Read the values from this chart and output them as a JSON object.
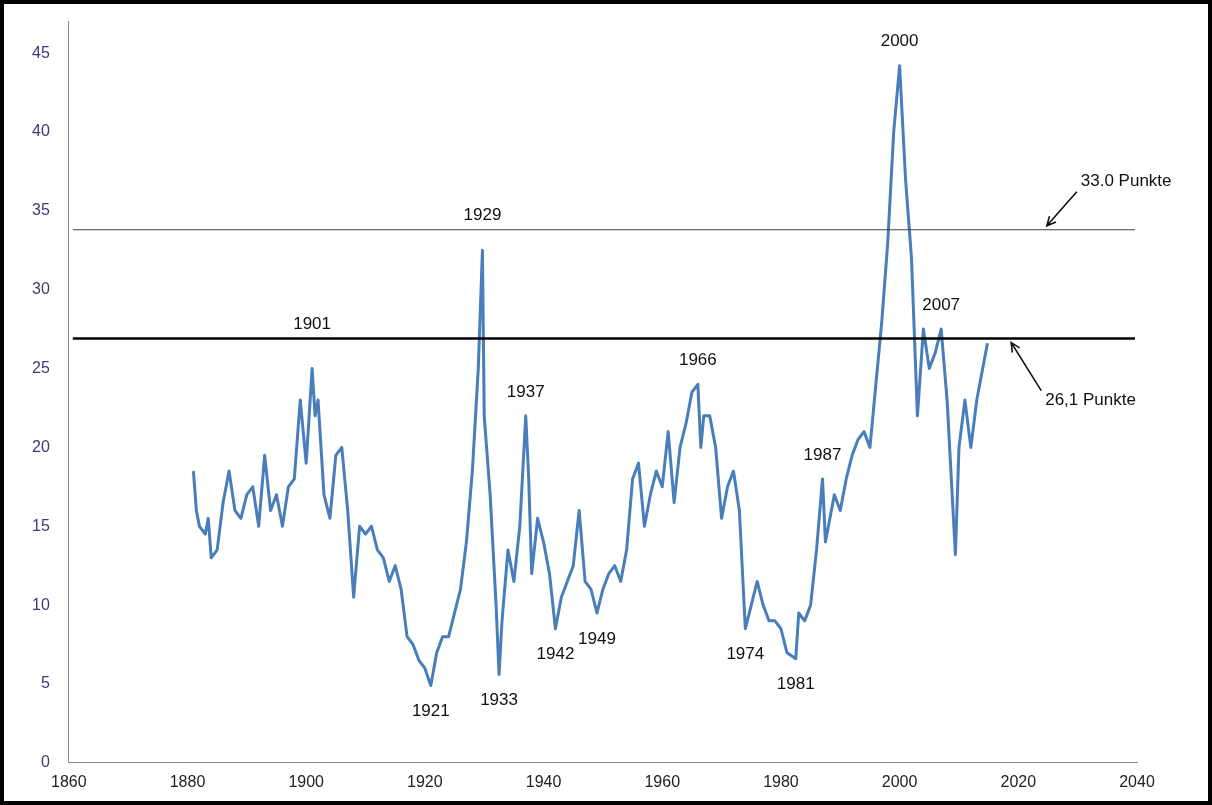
{
  "chart_data": {
    "type": "line",
    "x": [
      1881,
      1881.5,
      1882,
      1883,
      1883.5,
      1884,
      1885,
      1886,
      1887,
      1888,
      1889,
      1890,
      1891,
      1892,
      1893,
      1894,
      1895,
      1896,
      1897,
      1898,
      1899,
      1900,
      1901,
      1901.5,
      1902,
      1903,
      1904,
      1905,
      1906,
      1907,
      1908,
      1909,
      1910,
      1911,
      1912,
      1913,
      1914,
      1915,
      1916,
      1917,
      1918,
      1919,
      1920,
      1921,
      1922,
      1923,
      1924,
      1925,
      1926,
      1927,
      1928,
      1929,
      1929.7,
      1930,
      1931,
      1932,
      1932.5,
      1933,
      1934,
      1935,
      1936,
      1937,
      1937.5,
      1938,
      1939,
      1940,
      1941,
      1942,
      1943,
      1944,
      1945,
      1946,
      1947,
      1948,
      1949,
      1950,
      1951,
      1952,
      1953,
      1954,
      1955,
      1956,
      1957,
      1958,
      1959,
      1960,
      1961,
      1962,
      1963,
      1964,
      1965,
      1966,
      1966.5,
      1967,
      1968,
      1969,
      1970,
      1971,
      1972,
      1973,
      1974,
      1975,
      1976,
      1977,
      1978,
      1979,
      1980,
      1981,
      1982.5,
      1983,
      1984,
      1985,
      1986,
      1987,
      1987.5,
      1988,
      1989,
      1990,
      1991,
      1992,
      1993,
      1994,
      1995,
      1996,
      1997,
      1998,
      1999,
      2000,
      2001,
      2002,
      2003,
      2004,
      2005,
      2006,
      2007,
      2008,
      2009.4,
      2010,
      2011,
      2012,
      2013,
      2014,
      2014.8
    ],
    "series": [
      {
        "color": "#4a7ebb",
        "values": [
          18.5,
          16,
          15,
          14.5,
          15.5,
          13,
          13.5,
          16.5,
          18.5,
          16,
          15.5,
          17,
          17.5,
          15,
          19.5,
          16,
          17,
          15,
          17.5,
          18,
          23,
          19,
          25,
          22,
          23,
          17,
          15.5,
          19.5,
          20,
          16,
          10.5,
          15,
          14.5,
          15,
          13.5,
          13,
          11.5,
          12.5,
          11,
          8,
          7.5,
          6.5,
          6,
          4.9,
          7,
          8,
          8,
          9.5,
          11,
          14,
          18.5,
          25,
          32.5,
          22,
          17,
          10,
          5.6,
          9,
          13.5,
          11.5,
          15,
          22,
          18,
          12,
          15.5,
          14,
          12,
          8.5,
          10.5,
          11.5,
          12.5,
          16,
          11.5,
          11,
          9.5,
          11,
          12,
          12.5,
          11.5,
          13.5,
          18,
          19,
          15,
          17,
          18.5,
          17.5,
          21,
          16.5,
          20,
          21.5,
          23.5,
          24,
          20,
          22,
          22,
          20,
          15.5,
          17.5,
          18.5,
          16,
          8.5,
          10,
          11.5,
          10,
          9,
          9,
          8.5,
          7,
          6.6,
          9.5,
          9,
          10,
          13.5,
          18,
          14,
          15,
          17,
          16,
          18,
          19.5,
          20.5,
          21,
          20,
          24,
          28,
          33,
          40,
          44.2,
          37,
          32,
          22,
          27.5,
          25,
          26,
          27.5,
          23,
          13.2,
          20,
          23,
          20,
          23,
          25,
          26.6
        ]
      }
    ],
    "xlim": [
      1860,
      2040
    ],
    "xticks": [
      1860,
      1880,
      1900,
      1920,
      1940,
      1960,
      1980,
      2000,
      2020,
      2040
    ],
    "ylim": [
      0,
      47
    ],
    "yticks": [
      0,
      5,
      10,
      15,
      20,
      25,
      30,
      35,
      40,
      45
    ],
    "ref_lines": [
      {
        "axis": "y",
        "value": 33.8,
        "color": "#404040",
        "label": "33.0 Punkte"
      },
      {
        "axis": "y",
        "value": 26.9,
        "color": "#000000",
        "label": "26,1 Punkte"
      }
    ],
    "annotations": [
      {
        "text": "1901",
        "x": 1901,
        "y": 25
      },
      {
        "text": "1929",
        "x": 1929.7,
        "y": 32.5
      },
      {
        "text": "1937",
        "x": 1937,
        "y": 22
      },
      {
        "text": "1966",
        "x": 1966,
        "y": 24
      },
      {
        "text": "1987",
        "x": 1987,
        "y": 18
      },
      {
        "text": "2000",
        "x": 2000,
        "y": 44.2
      },
      {
        "text": "2007",
        "x": 2007,
        "y": 27.5
      },
      {
        "text": "1921",
        "x": 1921,
        "y": 4.9
      },
      {
        "text": "1933",
        "x": 1932.5,
        "y": 5.6
      },
      {
        "text": "1942",
        "x": 1942,
        "y": 8.5
      },
      {
        "text": "1949",
        "x": 1949,
        "y": 9.5
      },
      {
        "text": "1974",
        "x": 1974,
        "y": 8.5
      },
      {
        "text": "1981",
        "x": 1982.5,
        "y": 6.6
      }
    ]
  }
}
